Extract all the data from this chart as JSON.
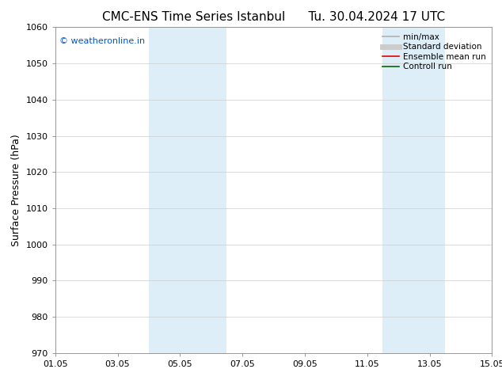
{
  "title": "CMC-ENS Time Series Istanbul",
  "title_right": "Tu. 30.04.2024 17 UTC",
  "ylabel": "Surface Pressure (hPa)",
  "xlim_num": [
    0,
    14
  ],
  "ylim": [
    970,
    1060
  ],
  "yticks": [
    970,
    980,
    990,
    1000,
    1010,
    1020,
    1030,
    1040,
    1050,
    1060
  ],
  "xtick_labels": [
    "01.05",
    "03.05",
    "05.05",
    "07.05",
    "09.05",
    "11.05",
    "13.05",
    "15.05"
  ],
  "xtick_positions": [
    0,
    2,
    4,
    6,
    8,
    10,
    12,
    14
  ],
  "shaded_bands": [
    {
      "xmin": 3.0,
      "xmax": 5.5,
      "color": "#ddeef9"
    },
    {
      "xmin": 10.5,
      "xmax": 12.5,
      "color": "#ddeef9"
    }
  ],
  "watermark_text": "© weatheronline.in",
  "watermark_color": "#0055cc",
  "legend_items": [
    {
      "label": "min/max",
      "color": "#b0b0b0",
      "lw": 1.2
    },
    {
      "label": "Standard deviation",
      "color": "#cccccc",
      "lw": 5
    },
    {
      "label": "Ensemble mean run",
      "color": "#dd0000",
      "lw": 1.2
    },
    {
      "label": "Controll run",
      "color": "#006600",
      "lw": 1.2
    }
  ],
  "background_color": "#ffffff",
  "grid_color": "#cccccc",
  "title_fontsize": 11,
  "ylabel_fontsize": 9,
  "tick_fontsize": 8,
  "legend_fontsize": 7.5,
  "watermark_fontsize": 8
}
